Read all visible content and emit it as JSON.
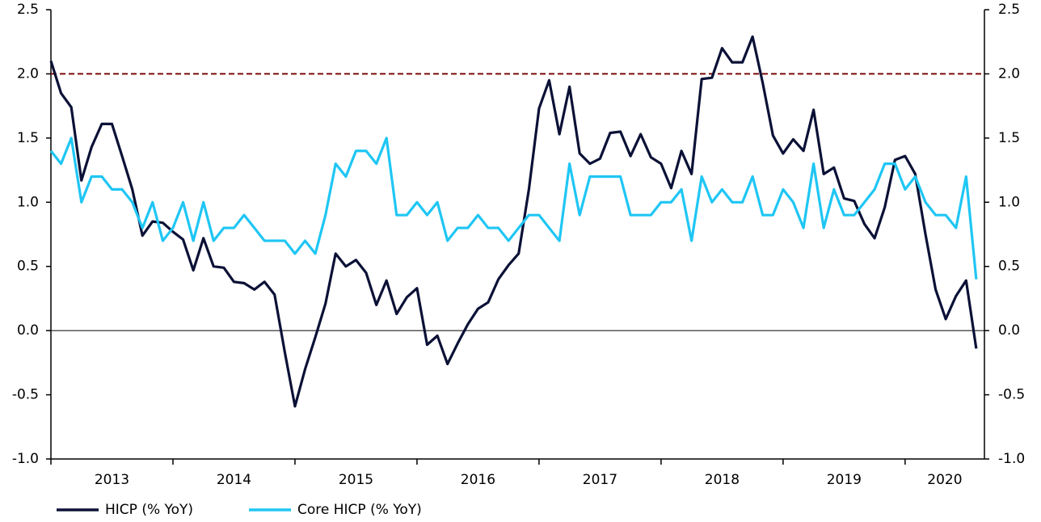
{
  "chart_data": {
    "type": "line",
    "x": [
      2013,
      2013.083,
      2013.167,
      2013.25,
      2013.333,
      2013.417,
      2013.5,
      2013.583,
      2013.667,
      2013.75,
      2013.833,
      2013.917,
      2014,
      2014.083,
      2014.167,
      2014.25,
      2014.333,
      2014.417,
      2014.5,
      2014.583,
      2014.667,
      2014.75,
      2014.833,
      2014.917,
      2015,
      2015.083,
      2015.167,
      2015.25,
      2015.333,
      2015.417,
      2015.5,
      2015.583,
      2015.667,
      2015.75,
      2015.833,
      2015.917,
      2016,
      2016.083,
      2016.167,
      2016.25,
      2016.333,
      2016.417,
      2016.5,
      2016.583,
      2016.667,
      2016.75,
      2016.833,
      2016.917,
      2017,
      2017.083,
      2017.167,
      2017.25,
      2017.333,
      2017.417,
      2017.5,
      2017.583,
      2017.667,
      2017.75,
      2017.833,
      2017.917,
      2018,
      2018.083,
      2018.167,
      2018.25,
      2018.333,
      2018.417,
      2018.5,
      2018.583,
      2018.667,
      2018.75,
      2018.833,
      2018.917,
      2019,
      2019.083,
      2019.167,
      2019.25,
      2019.333,
      2019.417,
      2019.5,
      2019.583,
      2019.667,
      2019.75,
      2019.833,
      2019.917,
      2020,
      2020.083,
      2020.167,
      2020.25,
      2020.333,
      2020.417,
      2020.5,
      2020.583
    ],
    "series": [
      {
        "name": "HICP (% YoY)",
        "color": "#0b1136",
        "values": [
          2.1,
          1.85,
          1.74,
          1.17,
          1.43,
          1.61,
          1.61,
          1.36,
          1.1,
          0.74,
          0.85,
          0.84,
          0.77,
          0.71,
          0.47,
          0.72,
          0.5,
          0.49,
          0.38,
          0.37,
          0.32,
          0.38,
          0.28,
          -0.17,
          -0.59,
          -0.3,
          -0.05,
          0.21,
          0.6,
          0.5,
          0.55,
          0.45,
          0.2,
          0.39,
          0.13,
          0.26,
          0.33,
          -0.11,
          -0.04,
          -0.26,
          -0.1,
          0.05,
          0.17,
          0.22,
          0.4,
          0.51,
          0.6,
          1.1,
          1.73,
          1.95,
          1.53,
          1.9,
          1.38,
          1.3,
          1.34,
          1.54,
          1.55,
          1.36,
          1.53,
          1.35,
          1.3,
          1.11,
          1.4,
          1.22,
          1.96,
          1.97,
          2.2,
          2.09,
          2.09,
          2.29,
          1.93,
          1.52,
          1.38,
          1.49,
          1.4,
          1.72,
          1.22,
          1.27,
          1.03,
          1.01,
          0.83,
          0.72,
          0.96,
          1.33,
          1.36,
          1.22,
          0.75,
          0.32,
          0.09,
          0.27,
          0.39,
          -0.14
        ]
      },
      {
        "name": "Core HICP (% YoY)",
        "color": "#1fc6f4",
        "values": [
          1.4,
          1.3,
          1.5,
          1.0,
          1.2,
          1.2,
          1.1,
          1.1,
          1.0,
          0.8,
          1.0,
          0.7,
          0.8,
          1.0,
          0.7,
          1.0,
          0.7,
          0.8,
          0.8,
          0.9,
          0.8,
          0.7,
          0.7,
          0.7,
          0.6,
          0.7,
          0.6,
          0.9,
          1.3,
          1.2,
          1.4,
          1.4,
          1.3,
          1.5,
          0.9,
          0.9,
          1.0,
          0.9,
          1.0,
          0.7,
          0.8,
          0.8,
          0.9,
          0.8,
          0.8,
          0.7,
          0.8,
          0.9,
          0.9,
          0.8,
          0.7,
          1.3,
          0.9,
          1.2,
          1.2,
          1.2,
          1.2,
          0.9,
          0.9,
          0.9,
          1.0,
          1.0,
          1.1,
          0.7,
          1.2,
          1.0,
          1.1,
          1.0,
          1.0,
          1.2,
          0.9,
          0.9,
          1.1,
          1.0,
          0.8,
          1.3,
          0.8,
          1.1,
          0.9,
          0.9,
          1.0,
          1.1,
          1.3,
          1.3,
          1.1,
          1.2,
          1.0,
          0.9,
          0.9,
          0.8,
          1.2,
          0.4
        ]
      }
    ],
    "xlim": [
      2013,
      2020.65
    ],
    "xticks": [
      2013,
      2014,
      2015,
      2016,
      2017,
      2018,
      2019,
      2020
    ],
    "ylim": [
      -1,
      2.5
    ],
    "yticks": [
      {
        "value": -1,
        "label": "-1.0"
      },
      -0.5,
      {
        "value": 0,
        "label": "0.0"
      },
      0.5,
      {
        "value": 1,
        "label": "1.0"
      },
      1.5,
      {
        "value": 2,
        "label": "2.0"
      },
      2.5
    ],
    "y2lim": [
      -1,
      2.5
    ],
    "y2ticks": [
      {
        "value": -1,
        "label": "-1.0"
      },
      -0.5,
      {
        "value": 0,
        "label": "0.0"
      },
      0.5,
      {
        "value": 1,
        "label": "1.0"
      },
      1.5,
      {
        "value": 2,
        "label": "2.0"
      },
      2.5
    ],
    "reference_line": {
      "value": 2,
      "color": "#7a0a0a"
    },
    "legend": "bottom-left"
  }
}
